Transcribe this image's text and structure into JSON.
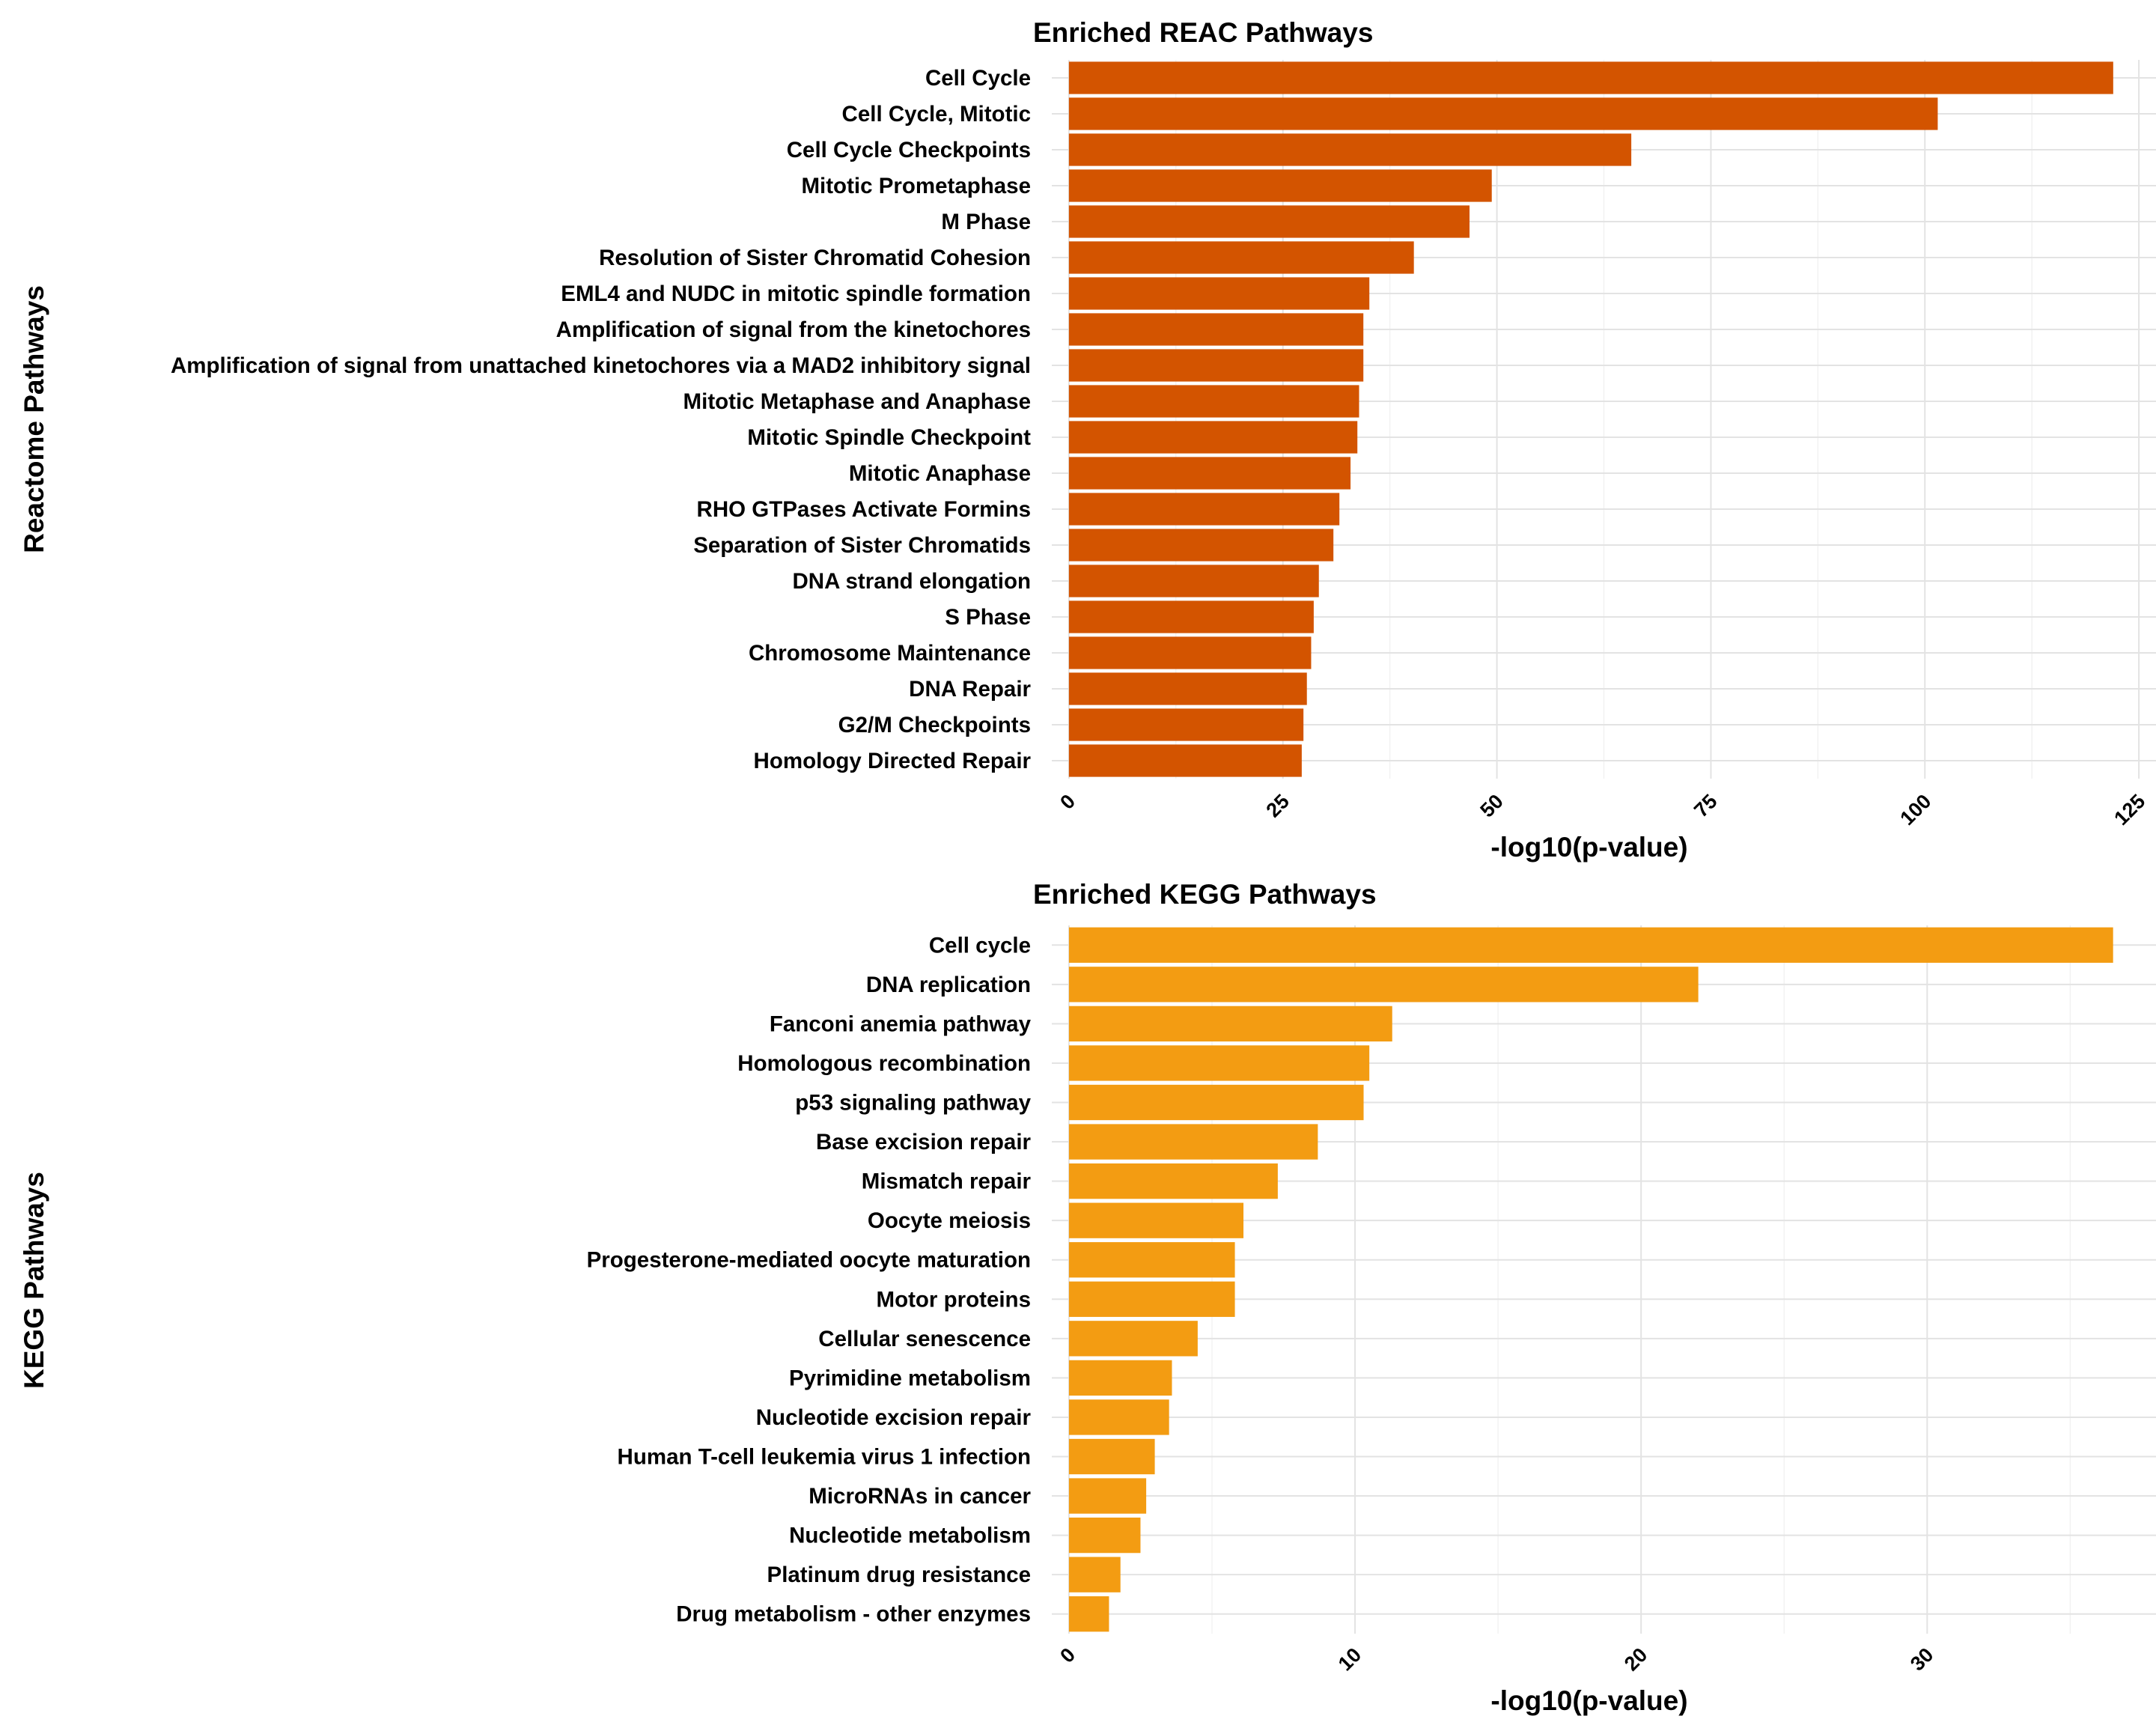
{
  "colors": {
    "reac_bar": "#d35400",
    "kegg_bar": "#f39c12",
    "grid_major": "#e3e3e3",
    "grid_minor": "#efefef",
    "text": "#000000"
  },
  "chart_data": [
    {
      "type": "bar",
      "orientation": "horizontal",
      "title": "Enriched REAC Pathways",
      "xlabel": "-log10(p-value)",
      "ylabel": "Reactome Pathways",
      "xlim": [
        -2,
        127
      ],
      "xticks": [
        0,
        25,
        50,
        75,
        100,
        125
      ],
      "grid": true,
      "legend": "none",
      "categories": [
        "Cell Cycle",
        "Cell Cycle, Mitotic",
        "Cell Cycle Checkpoints",
        "Mitotic Prometaphase",
        "M Phase",
        "Resolution of Sister Chromatid Cohesion",
        "EML4 and NUDC in mitotic spindle formation",
        "Amplification of signal from the kinetochores",
        "Amplification  of signal from unattached  kinetochores via a MAD2  inhibitory signal",
        "Mitotic Metaphase and Anaphase",
        "Mitotic Spindle Checkpoint",
        "Mitotic Anaphase",
        "RHO GTPases Activate Formins",
        "Separation of Sister Chromatids",
        "DNA strand elongation",
        "S Phase",
        "Chromosome Maintenance",
        "DNA Repair",
        "G2/M Checkpoints",
        "Homology Directed Repair"
      ],
      "values": [
        122,
        101.5,
        65.7,
        49.4,
        46.8,
        40.3,
        35.1,
        34.4,
        34.4,
        33.9,
        33.7,
        32.9,
        31.6,
        30.9,
        29.2,
        28.6,
        28.3,
        27.8,
        27.4,
        27.2
      ]
    },
    {
      "type": "bar",
      "orientation": "horizontal",
      "title": "Enriched KEGG Pathways",
      "xlabel": "-log10(p-value)",
      "ylabel": "KEGG Pathways",
      "xlim": [
        -0.6,
        38
      ],
      "xticks": [
        0,
        10,
        20,
        30
      ],
      "grid": true,
      "legend": "none",
      "categories": [
        "Cell cycle",
        "DNA replication",
        "Fanconi anemia pathway",
        "Homologous recombination",
        "p53 signaling pathway",
        "Base excision repair",
        "Mismatch repair",
        "Oocyte meiosis",
        "Progesterone-mediated oocyte maturation",
        "Motor proteins",
        "Cellular senescence",
        "Pyrimidine metabolism",
        "Nucleotide excision repair",
        "Human T-cell leukemia virus 1 infection",
        "MicroRNAs in cancer",
        "Nucleotide metabolism",
        "Platinum drug resistance",
        "Drug metabolism - other enzymes"
      ],
      "values": [
        36.5,
        22,
        11.3,
        10.5,
        10.3,
        8.7,
        7.3,
        6.1,
        5.8,
        5.8,
        4.5,
        3.6,
        3.5,
        3.0,
        2.7,
        2.5,
        1.8,
        1.4
      ]
    }
  ]
}
